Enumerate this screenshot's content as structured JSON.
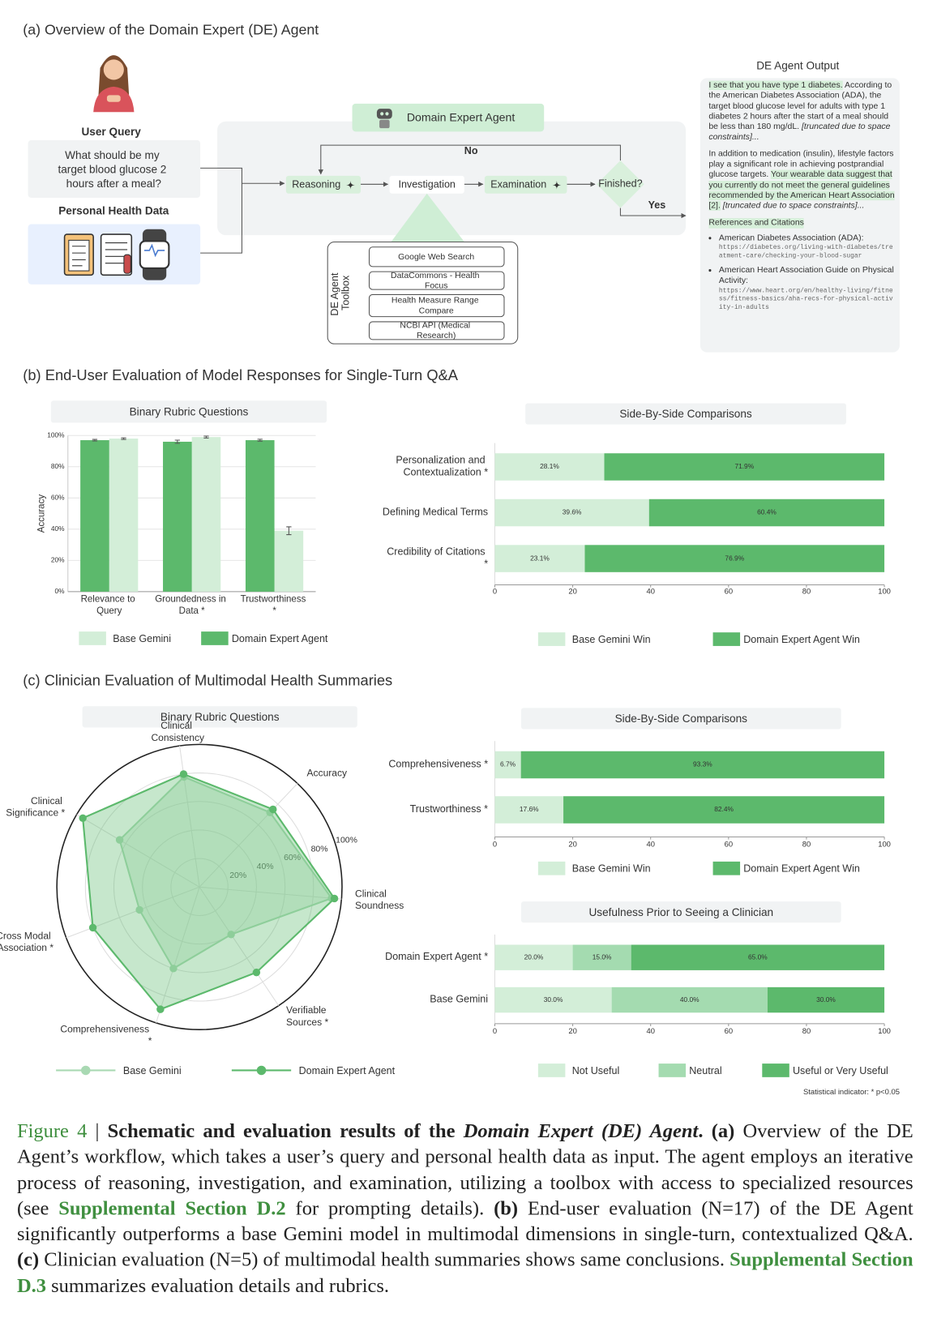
{
  "panel_a": {
    "title": "(a) Overview of the Domain Expert (DE) Agent",
    "user_query_label": "User Query",
    "user_query": "What should be my target blood glucose 2 hours after a meal?",
    "personal_health_data_label": "Personal Health Data",
    "agent_label": "Domain Expert Agent",
    "steps": [
      "Reasoning",
      "Investigation",
      "Examination"
    ],
    "decision": "Finished?",
    "no": "No",
    "yes": "Yes",
    "toolbox_label": "DE Agent Toolbox",
    "tools": [
      "Google Web Search",
      "DataCommons - Health Focus",
      "Health Measure Range Compare",
      "NCBI API (Medical Research)"
    ],
    "output_title": "DE Agent Output",
    "output_paragraphs": [
      [
        {
          "text": "I see that you have type 1 diabetes.",
          "style": "highlight"
        },
        {
          "text": " According to the American Diabetes Association (ADA), the target blood glucose level for adults with type 1 diabetes 2 hours after the start of a meal should be less than 180 mg/dL. ",
          "style": "plain"
        },
        {
          "text": "[truncated due to space constraints]...",
          "style": "italic"
        }
      ],
      [
        {
          "text": "In addition to medication (insulin), lifestyle factors play a significant role in achieving postprandial glucose targets. ",
          "style": "plain"
        },
        {
          "text": "Your wearable data suggest that you currently do not meet the general guidelines recommended by the American Heart Association [2].",
          "style": "highlight"
        },
        {
          "text": " [truncated due to space constraints]...",
          "style": "italic"
        }
      ]
    ],
    "references_title": "References and Citations",
    "references": [
      {
        "name": "American Diabetes Association (ADA):",
        "url": "https://diabetes.org/living-with-diabetes/treatment-care/checking-your-blood-sugar"
      },
      {
        "name": "American Heart Association Guide on Physical Activity:",
        "url": "https://www.heart.org/en/healthy-living/fitness/fitness-basics/aha-recs-for-physical-activity-in-adults"
      }
    ]
  },
  "panel_b_title": "(b) End-User Evaluation of Model Responses for Single-Turn Q&A",
  "panel_c_title": "(c) Clinician Evaluation of Multimodal Health Summaries",
  "chart_data": [
    {
      "type": "bar",
      "title": "Binary Rubric Questions",
      "y_label": "Accuracy",
      "categories": [
        "Relevance to Query",
        "Groundedness in Data *",
        "Trustworthiness *"
      ],
      "series": [
        {
          "name": "Base Gemini",
          "color": "#d3eed8",
          "values": [
            98,
            99,
            39
          ],
          "errors": [
            0.5,
            0.6,
            2.5
          ]
        },
        {
          "name": "Domain Expert Agent",
          "color": "#5cb96c",
          "values": [
            97,
            96,
            97
          ],
          "errors": [
            0.5,
            1,
            0.6
          ]
        }
      ],
      "ylim": [
        0,
        100
      ],
      "yticks": [
        {
          "value": 0,
          "label": "0%"
        },
        {
          "value": 20,
          "label": "20%"
        },
        {
          "value": 40,
          "label": "40%"
        },
        {
          "value": 60,
          "label": "60%"
        },
        {
          "value": 80,
          "label": "80%"
        },
        {
          "value": 100,
          "label": "100%"
        }
      ],
      "grid": true
    },
    {
      "type": "hbar_stacked",
      "title": "Side-By-Side Comparisons",
      "categories": [
        "Personalization and Contextualization *",
        "Defining Medical Terms",
        "Credibility of Citations *"
      ],
      "series": [
        {
          "name": "Base Gemini Win",
          "color": "#d3eed8",
          "values": [
            28.1,
            39.6,
            23.1
          ],
          "value_labels": [
            "28.1%",
            "39.6%",
            "23.1%"
          ]
        },
        {
          "name": "Domain Expert Agent Win",
          "color": "#5cb96c",
          "values": [
            71.9,
            60.4,
            76.9
          ],
          "value_labels": [
            "71.9%",
            "60.4%",
            "76.9%"
          ]
        }
      ],
      "xlim": [
        0,
        100
      ],
      "xticks": [
        0,
        20,
        40,
        60,
        80,
        100
      ]
    },
    {
      "type": "radar",
      "title": "Binary Rubric Questions",
      "axes": [
        "Clinical Consistency",
        "Accuracy",
        "Clinical Soundness",
        "Verifiable Sources *",
        "Comprehensiveness *",
        "Cross Modal Association *",
        "Clinical Significance *"
      ],
      "series": [
        {
          "name": "Base Gemini",
          "color": "#a9d9b3",
          "values": [
            78,
            72,
            93,
            40,
            60,
            45,
            65
          ]
        },
        {
          "name": "Domain Expert Agent",
          "color": "#5cb96c",
          "values": [
            80,
            75,
            95,
            72,
            90,
            80,
            95
          ]
        }
      ],
      "rlim": [
        0,
        100
      ],
      "rticks": [
        {
          "value": 20,
          "label": "20%"
        },
        {
          "value": 40,
          "label": "40%"
        },
        {
          "value": 60,
          "label": "60%"
        },
        {
          "value": 80,
          "label": "80%"
        },
        {
          "value": 100,
          "label": "100%"
        }
      ]
    },
    {
      "type": "hbar_stacked",
      "title": "Side-By-Side Comparisons",
      "categories": [
        "Comprehensiveness *",
        "Trustworthiness *"
      ],
      "series": [
        {
          "name": "Base Gemini Win",
          "color": "#d3eed8",
          "values": [
            6.7,
            17.6
          ],
          "value_labels": [
            "6.7%",
            "17.6%"
          ]
        },
        {
          "name": "Domain Expert Agent Win",
          "color": "#5cb96c",
          "values": [
            93.3,
            82.4
          ],
          "value_labels": [
            "93.3%",
            "82.4%"
          ]
        }
      ],
      "xlim": [
        0,
        100
      ],
      "xticks": [
        0,
        20,
        40,
        60,
        80,
        100
      ]
    },
    {
      "type": "hbar_stacked",
      "title": "Usefulness Prior to Seeing a Clinician",
      "categories": [
        "Domain Expert Agent *",
        "Base Gemini"
      ],
      "series": [
        {
          "name": "Not Useful",
          "color": "#d3eed8",
          "values": [
            20,
            30
          ],
          "value_labels": [
            "20.0%",
            "30.0%"
          ]
        },
        {
          "name": "Neutral",
          "color": "#a4dbb0",
          "values": [
            15,
            40
          ],
          "value_labels": [
            "15.0%",
            "40.0%"
          ]
        },
        {
          "name": "Useful or Very Useful",
          "color": "#5cb96c",
          "values": [
            65,
            30
          ],
          "value_labels": [
            "65.0%",
            "30.0%"
          ]
        }
      ],
      "xlim": [
        0,
        100
      ],
      "xticks": [
        0,
        20,
        40,
        60,
        80,
        100
      ]
    }
  ],
  "statistical_note": "Statistical indicator: * p<0.05",
  "caption": [
    {
      "text": "Figure 4",
      "style": "green"
    },
    {
      "text": " | ",
      "style": "plain"
    },
    {
      "text": "Schematic and evaluation results of the ",
      "style": "bold"
    },
    {
      "text": "Domain Expert (DE) Agent",
      "style": "bold-italic"
    },
    {
      "text": ".",
      "style": "bold"
    },
    {
      "text": " ",
      "style": "plain"
    },
    {
      "text": "(a)",
      "style": "bold"
    },
    {
      "text": " Overview of the DE Agent’s workflow, which takes a user’s query and personal health data as input. The agent employs an iterative process of reasoning, investigation, and examination, utilizing a toolbox with access to specialized resources (see ",
      "style": "plain"
    },
    {
      "text": "Supplemental Section D.2",
      "style": "link"
    },
    {
      "text": " for prompting details). ",
      "style": "plain"
    },
    {
      "text": "(b)",
      "style": "bold"
    },
    {
      "text": " End-user evaluation (N=17) of the DE Agent significantly outperforms a base Gemini model in multimodal dimensions in single-turn, contextualized Q&A. ",
      "style": "plain"
    },
    {
      "text": "(c)",
      "style": "bold"
    },
    {
      "text": " Clinician evaluation (N=5) of multimodal health summaries shows same conclusions. ",
      "style": "plain"
    },
    {
      "text": "Supplemental Section D.3",
      "style": "link"
    },
    {
      "text": " summarizes evaluation details and rubrics.",
      "style": "plain"
    }
  ]
}
